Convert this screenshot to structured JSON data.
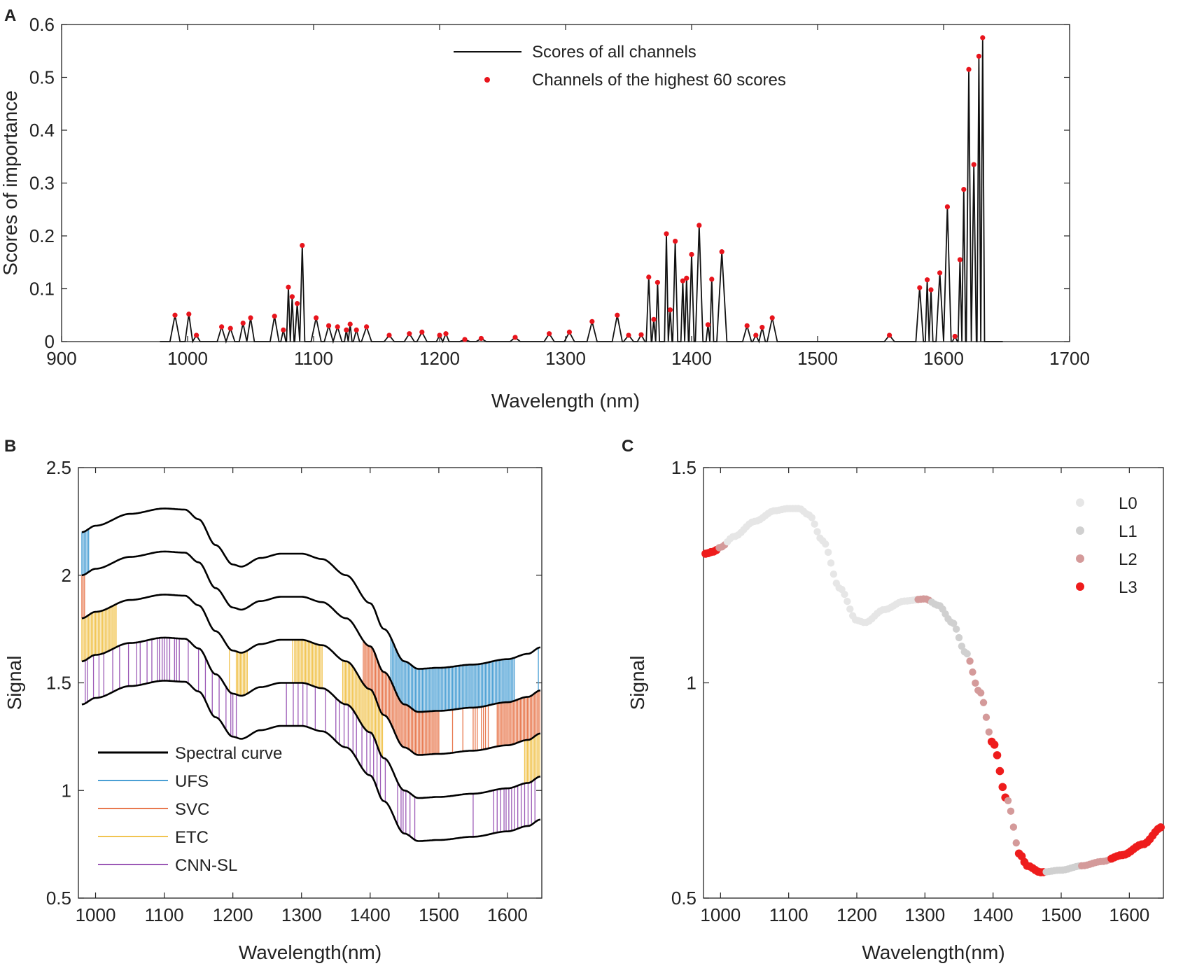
{
  "panels": {
    "A": "A",
    "B": "B",
    "C": "C"
  },
  "chart_data": [
    {
      "panel": "A",
      "type": "line",
      "xlabel": "Wavelength (nm)",
      "ylabel": "Scores of importance",
      "xlim": [
        900,
        1700
      ],
      "ylim": [
        0,
        0.6
      ],
      "xticks": [
        900,
        1000,
        1100,
        1200,
        1300,
        1400,
        1500,
        1600,
        1700
      ],
      "yticks": [
        0,
        0.1,
        0.2,
        0.3,
        0.4,
        0.5,
        0.6
      ],
      "ytick_labels": [
        "0",
        "0.1",
        "0.2",
        "0.3",
        "0.4",
        "0.5",
        "0.6"
      ],
      "legend_position": "top-center",
      "series": [
        {
          "name": "Scores of all channels",
          "color": "#111111",
          "kind": "line"
        },
        {
          "name": "Channels of the highest 60 scores",
          "color": "#e8141c",
          "kind": "points"
        }
      ],
      "peaks": [
        [
          990,
          0.05
        ],
        [
          1001,
          0.052
        ],
        [
          1007,
          0.012
        ],
        [
          1027,
          0.028
        ],
        [
          1034,
          0.025
        ],
        [
          1044,
          0.035
        ],
        [
          1050,
          0.045
        ],
        [
          1069,
          0.048
        ],
        [
          1076,
          0.022
        ],
        [
          1080,
          0.103
        ],
        [
          1083,
          0.085
        ],
        [
          1087,
          0.072
        ],
        [
          1091,
          0.182
        ],
        [
          1102,
          0.045
        ],
        [
          1112,
          0.03
        ],
        [
          1119,
          0.028
        ],
        [
          1126,
          0.022
        ],
        [
          1129,
          0.033
        ],
        [
          1134,
          0.022
        ],
        [
          1142,
          0.028
        ],
        [
          1160,
          0.012
        ],
        [
          1176,
          0.015
        ],
        [
          1186,
          0.018
        ],
        [
          1200,
          0.012
        ],
        [
          1205,
          0.015
        ],
        [
          1220,
          0.004
        ],
        [
          1233,
          0.006
        ],
        [
          1260,
          0.008
        ],
        [
          1287,
          0.015
        ],
        [
          1303,
          0.018
        ],
        [
          1321,
          0.038
        ],
        [
          1341,
          0.05
        ],
        [
          1350,
          0.012
        ],
        [
          1360,
          0.013
        ],
        [
          1366,
          0.122
        ],
        [
          1370,
          0.042
        ],
        [
          1373,
          0.112
        ],
        [
          1380,
          0.204
        ],
        [
          1383,
          0.06
        ],
        [
          1387,
          0.19
        ],
        [
          1393,
          0.115
        ],
        [
          1396,
          0.12
        ],
        [
          1400,
          0.165
        ],
        [
          1406,
          0.22
        ],
        [
          1413,
          0.032
        ],
        [
          1416,
          0.118
        ],
        [
          1424,
          0.17
        ],
        [
          1444,
          0.03
        ],
        [
          1451,
          0.012
        ],
        [
          1456,
          0.027
        ],
        [
          1464,
          0.045
        ],
        [
          1557,
          0.012
        ],
        [
          1581,
          0.102
        ],
        [
          1587,
          0.117
        ],
        [
          1590,
          0.098
        ],
        [
          1597,
          0.13
        ],
        [
          1603,
          0.255
        ],
        [
          1609,
          0.01
        ],
        [
          1613,
          0.155
        ],
        [
          1616,
          0.288
        ],
        [
          1620,
          0.515
        ],
        [
          1624,
          0.335
        ],
        [
          1628,
          0.54
        ],
        [
          1631,
          0.575
        ]
      ],
      "data_range": [
        978,
        1647
      ]
    },
    {
      "panel": "B",
      "type": "line",
      "xlabel": "Wavelength(nm)",
      "ylabel": "Signal",
      "xlim": [
        975,
        1650
      ],
      "ylim": [
        0.5,
        2.5
      ],
      "xticks": [
        1000,
        1100,
        1200,
        1300,
        1400,
        1500,
        1600
      ],
      "yticks": [
        0.5,
        1,
        1.5,
        2,
        2.5
      ],
      "ytick_labels": [
        "0.5",
        "1",
        "1.5",
        "2",
        "2.5"
      ],
      "legend_position": "bottom-left",
      "base_curve": [
        [
          980,
          1.5
        ],
        [
          1000,
          1.53
        ],
        [
          1050,
          1.585
        ],
        [
          1100,
          1.61
        ],
        [
          1130,
          1.605
        ],
        [
          1150,
          1.56
        ],
        [
          1175,
          1.44
        ],
        [
          1200,
          1.35
        ],
        [
          1212,
          1.34
        ],
        [
          1240,
          1.38
        ],
        [
          1270,
          1.4
        ],
        [
          1300,
          1.4
        ],
        [
          1330,
          1.375
        ],
        [
          1365,
          1.3
        ],
        [
          1400,
          1.17
        ],
        [
          1420,
          1.05
        ],
        [
          1450,
          0.9
        ],
        [
          1470,
          0.865
        ],
        [
          1500,
          0.87
        ],
        [
          1550,
          0.885
        ],
        [
          1600,
          0.91
        ],
        [
          1630,
          0.935
        ],
        [
          1648,
          0.965
        ]
      ],
      "curve_offsets": [
        -0.1,
        0.1,
        0.3,
        0.5,
        0.7
      ],
      "series": [
        {
          "name": "Spectral curve",
          "color": "#000000"
        },
        {
          "name": "UFS",
          "color": "#4a9fd4",
          "band": 4,
          "selected_wavelengths": [
            [
              980,
              990
            ],
            [
              1430,
              1610
            ],
            1645
          ]
        },
        {
          "name": "SVC",
          "color": "#e8794f",
          "band": 3,
          "selected_wavelengths": [
            [
              980,
              985
            ],
            [
              1390,
              1500
            ],
            1520,
            1535,
            1550,
            1553,
            1556,
            1562,
            1565,
            1568,
            1572,
            [
              1585,
              1648
            ]
          ]
        },
        {
          "name": "ETC",
          "color": "#f1c451",
          "band": 2,
          "selected_wavelengths": [
            [
              980,
              1030
            ],
            1195,
            [
              1205,
              1222
            ],
            1287,
            [
              1290,
              1330
            ],
            [
              1360,
              1418
            ],
            [
              1625,
              1648
            ]
          ]
        },
        {
          "name": "CNN-SL",
          "color": "#9b59b6",
          "band": 1,
          "selected_wavelengths": [
            985,
            988,
            997,
            1005,
            1012,
            1025,
            1035,
            1048,
            1060,
            1065,
            1075,
            1082,
            1090,
            1093,
            1097,
            1100,
            1104,
            1108,
            1115,
            1118,
            1122,
            1135,
            1150,
            1160,
            1170,
            1180,
            1190,
            1197,
            1200,
            1205,
            1278,
            1288,
            1295,
            1302,
            1308,
            1320,
            1335,
            1350,
            1355,
            1362,
            1368,
            1375,
            1380,
            1388,
            1395,
            1400,
            1405,
            1410,
            1415,
            1422,
            1440,
            1445,
            1448,
            1452,
            1458,
            1465,
            1550,
            1580,
            1585,
            1590,
            1595,
            1598,
            1602,
            1606,
            1610,
            1615,
            1620,
            1625,
            1630,
            1635,
            1640
          ]
        }
      ]
    },
    {
      "panel": "C",
      "type": "scatter",
      "xlabel": "Wavelength(nm)",
      "ylabel": "Signal",
      "xlim": [
        975,
        1650
      ],
      "ylim": [
        0.5,
        1.5
      ],
      "xticks": [
        1000,
        1100,
        1200,
        1300,
        1400,
        1500,
        1600
      ],
      "yticks": [
        0.5,
        1,
        1.5
      ],
      "ytick_labels": [
        "0.5",
        "1",
        "1.5"
      ],
      "legend_position": "top-right",
      "curve": [
        [
          978,
          1.3
        ],
        [
          990,
          1.305
        ],
        [
          1000,
          1.315
        ],
        [
          1020,
          1.34
        ],
        [
          1050,
          1.375
        ],
        [
          1080,
          1.4
        ],
        [
          1100,
          1.405
        ],
        [
          1115,
          1.405
        ],
        [
          1130,
          1.39
        ],
        [
          1150,
          1.33
        ],
        [
          1175,
          1.22
        ],
        [
          1200,
          1.145
        ],
        [
          1212,
          1.14
        ],
        [
          1240,
          1.17
        ],
        [
          1270,
          1.19
        ],
        [
          1300,
          1.195
        ],
        [
          1320,
          1.18
        ],
        [
          1340,
          1.14
        ],
        [
          1360,
          1.07
        ],
        [
          1380,
          0.98
        ],
        [
          1400,
          0.86
        ],
        [
          1420,
          0.73
        ],
        [
          1440,
          0.6
        ],
        [
          1450,
          0.575
        ],
        [
          1470,
          0.56
        ],
        [
          1500,
          0.565
        ],
        [
          1530,
          0.575
        ],
        [
          1560,
          0.585
        ],
        [
          1590,
          0.6
        ],
        [
          1620,
          0.625
        ],
        [
          1648,
          0.665
        ]
      ],
      "series": [
        {
          "name": "L0",
          "color": "#e6e6e6"
        },
        {
          "name": "L1",
          "color": "#d0d0d0"
        },
        {
          "name": "L2",
          "color": "#d49a9a"
        },
        {
          "name": "L3",
          "color": "#ee1c1c"
        }
      ],
      "level_ranges": [
        {
          "from": 978,
          "to": 995,
          "level": 3
        },
        {
          "from": 995,
          "to": 1010,
          "level": 2
        },
        {
          "from": 1010,
          "to": 1290,
          "level": 0
        },
        {
          "from": 1290,
          "to": 1310,
          "level": 2
        },
        {
          "from": 1310,
          "to": 1365,
          "level": 1
        },
        {
          "from": 1365,
          "to": 1395,
          "level": 2
        },
        {
          "from": 1395,
          "to": 1420,
          "level": 3
        },
        {
          "from": 1420,
          "to": 1438,
          "level": 2
        },
        {
          "from": 1438,
          "to": 1475,
          "level": 3
        },
        {
          "from": 1475,
          "to": 1530,
          "level": 1
        },
        {
          "from": 1530,
          "to": 1572,
          "level": 2
        },
        {
          "from": 1572,
          "to": 1650,
          "level": 3
        }
      ],
      "step_nm": 4
    }
  ]
}
